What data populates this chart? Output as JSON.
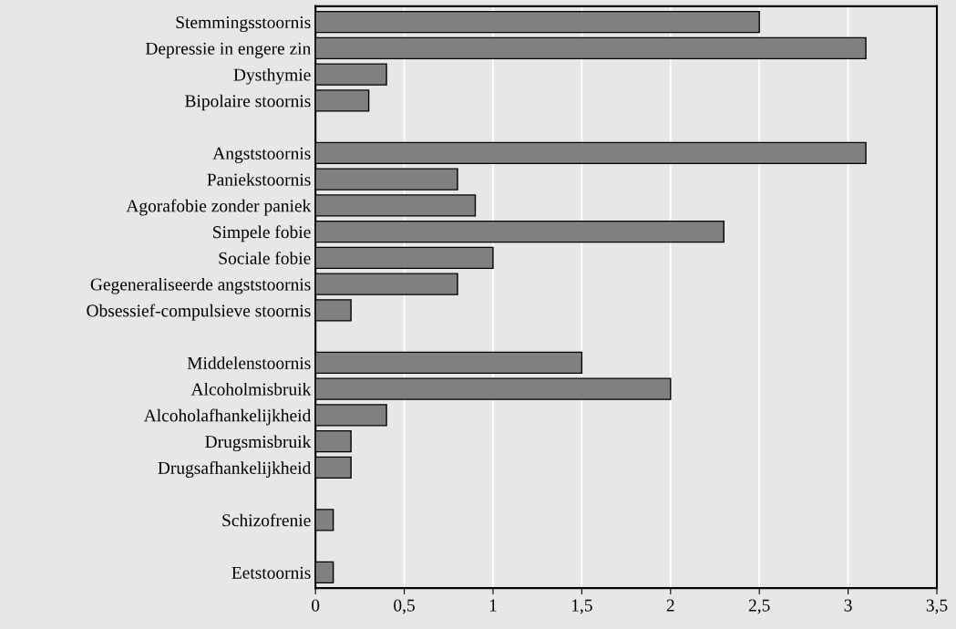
{
  "chart_data": {
    "type": "bar",
    "orientation": "horizontal",
    "categories": [
      "Stemmingsstoornis",
      "Depressie in engere zin",
      "Dysthymie",
      "Bipolaire stoornis",
      null,
      "Angststoornis",
      "Paniekstoornis",
      "Agorafobie zonder paniek",
      "Simpele fobie",
      "Sociale fobie",
      "Gegeneraliseerde angststoornis",
      "Obsessief-compulsieve stoornis",
      null,
      "Middelenstoornis",
      "Alcoholmisbruik",
      "Alcoholafhankelijkheid",
      "Drugsmisbruik",
      "Drugsafhankelijkheid",
      null,
      "Schizofrenie",
      null,
      "Eetstoornis"
    ],
    "values": [
      2.5,
      3.1,
      0.4,
      0.3,
      null,
      3.1,
      0.8,
      0.9,
      2.3,
      1.0,
      0.8,
      0.2,
      null,
      1.5,
      2.0,
      0.4,
      0.2,
      0.2,
      null,
      0.1,
      null,
      0.1
    ],
    "color": "#808080",
    "xlim": [
      0,
      3.5
    ],
    "xticks": [
      0,
      {
        "value": 0.5,
        "label": "0,5"
      },
      1,
      {
        "value": 1.5,
        "label": "1,5"
      },
      2,
      {
        "value": 2.5,
        "label": "2,5"
      },
      3,
      {
        "value": 3.5,
        "label": "3,5"
      }
    ],
    "grid": "x"
  }
}
